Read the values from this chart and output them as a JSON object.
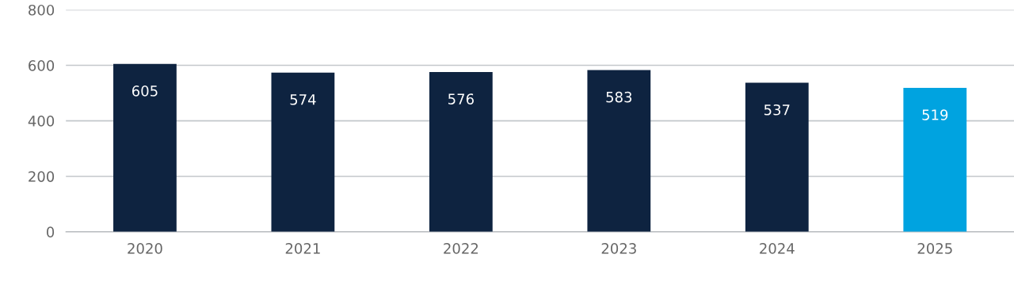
{
  "chart_data": {
    "type": "bar",
    "categories": [
      "2020",
      "2021",
      "2022",
      "2023",
      "2024",
      "2025"
    ],
    "values": [
      605,
      574,
      576,
      583,
      537,
      519
    ],
    "colors": [
      "#0e2340",
      "#0e2340",
      "#0e2340",
      "#0e2340",
      "#0e2340",
      "#00a3e0"
    ],
    "ylim": [
      0,
      800
    ],
    "yticks": [
      0,
      200,
      400,
      600,
      800
    ],
    "grid": "y",
    "data_labels": true
  }
}
